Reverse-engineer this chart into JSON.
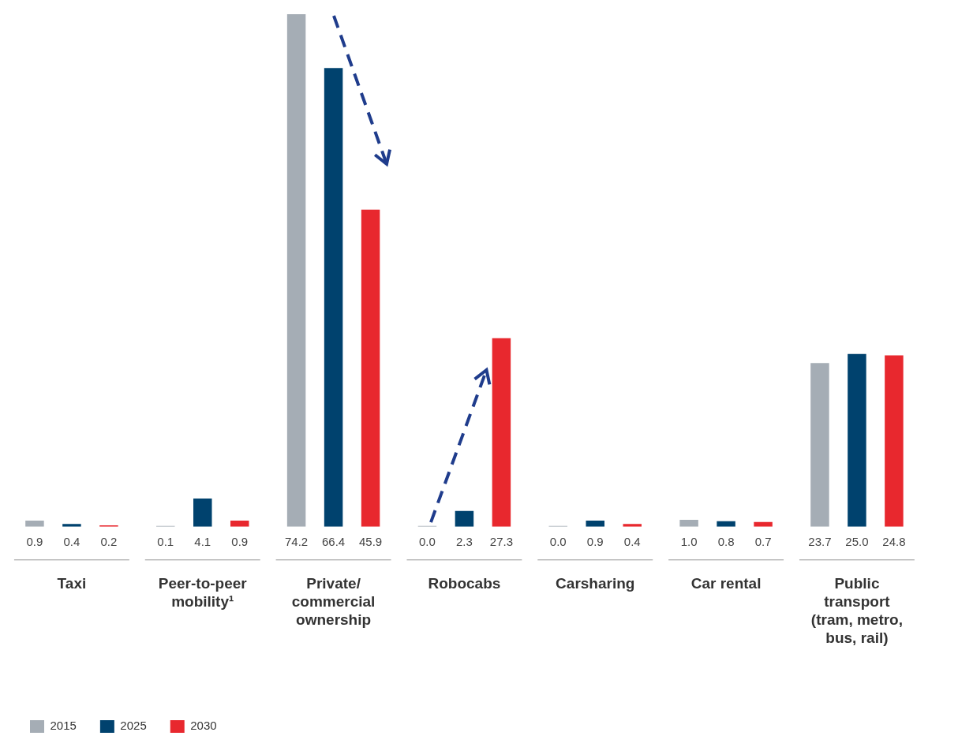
{
  "chart_data": {
    "type": "bar",
    "categories": [
      "Taxi",
      "Peer-to-peer mobility¹",
      "Private/ commercial ownership",
      "Robocabs",
      "Carsharing",
      "Car rental",
      "Public transport (tram, metro, bus, rail)"
    ],
    "series": [
      {
        "name": "2015",
        "color": "#a5adb5",
        "values": [
          0.9,
          0.1,
          74.2,
          0.0,
          0.0,
          1.0,
          23.7
        ],
        "value_labels": [
          "0.9",
          "0.1",
          "74.2",
          "0.0",
          "0.0",
          "1.0",
          "23.7"
        ]
      },
      {
        "name": "2025",
        "color": "#00426e",
        "values": [
          0.4,
          4.1,
          66.4,
          2.3,
          0.9,
          0.8,
          25.0
        ],
        "value_labels": [
          "0.4",
          "4.1",
          "66.4",
          "2.3",
          "0.9",
          "0.8",
          "25.0"
        ]
      },
      {
        "name": "2030",
        "color": "#e8282e",
        "values": [
          0.2,
          0.9,
          45.9,
          27.3,
          0.4,
          0.7,
          24.8
        ],
        "value_labels": [
          "0.2",
          "0.9",
          "45.9",
          "27.3",
          "0.4",
          "0.7",
          "24.8"
        ]
      }
    ],
    "grid": false,
    "legend": "bottom left"
  }
}
